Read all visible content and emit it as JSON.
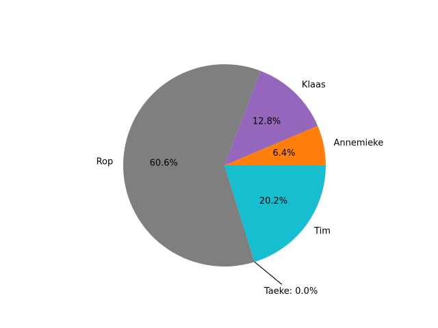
{
  "chart_data": {
    "type": "pie",
    "slices": [
      {
        "label": "Annemieke",
        "value": 6.4,
        "pct_text": "6.4%",
        "color": "#ff7f0e"
      },
      {
        "label": "Klaas",
        "value": 12.8,
        "pct_text": "12.8%",
        "color": "#9467bd"
      },
      {
        "label": "Rop",
        "value": 60.6,
        "pct_text": "60.6%",
        "color": "#7f7f7f"
      },
      {
        "label": "Taeke",
        "value": 0.0,
        "pct_text": "",
        "color": "#000000"
      },
      {
        "label": "Tim",
        "value": 20.2,
        "pct_text": "20.2%",
        "color": "#17becf"
      }
    ],
    "annotations": [
      {
        "text": "Taeke: 0.0%",
        "target": "Taeke"
      }
    ],
    "start_angle": "0 degrees (3 o'clock), counterclockwise",
    "title": "",
    "legend": "none"
  }
}
